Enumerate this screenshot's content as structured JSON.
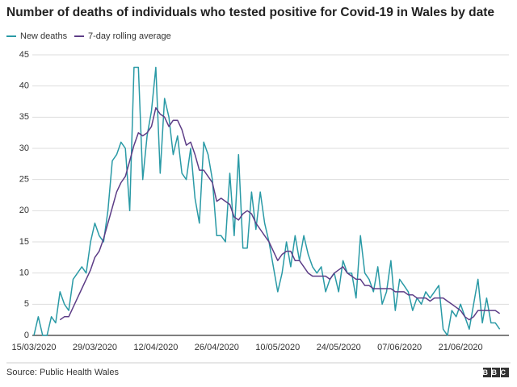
{
  "chart_data": {
    "type": "line",
    "title": "Number of deaths of individuals who tested positive for Covid-19 in Wales by date",
    "categories": [
      "15/03/2020",
      null,
      null,
      null,
      null,
      null,
      null,
      null,
      null,
      null,
      null,
      null,
      null,
      null,
      "29/03/2020",
      null,
      null,
      null,
      null,
      null,
      null,
      null,
      null,
      null,
      null,
      null,
      null,
      null,
      "12/04/2020",
      null,
      null,
      null,
      null,
      null,
      null,
      null,
      null,
      null,
      null,
      null,
      null,
      null,
      "26/04/2020",
      null,
      null,
      null,
      null,
      null,
      null,
      null,
      null,
      null,
      null,
      null,
      null,
      null,
      "10/05/2020",
      null,
      null,
      null,
      null,
      null,
      null,
      null,
      null,
      null,
      null,
      null,
      null,
      null,
      "24/05/2020",
      null,
      null,
      null,
      null,
      null,
      null,
      null,
      null,
      null,
      null,
      null,
      null,
      null,
      "07/06/2020",
      null,
      null,
      null,
      null,
      null,
      null,
      null,
      null,
      null,
      null,
      null,
      null,
      null,
      "21/06/2020",
      null,
      null,
      null,
      null,
      null,
      null,
      null,
      null,
      null
    ],
    "series": [
      {
        "name": "New deaths",
        "color": "#2a9aa6",
        "values": [
          0,
          3,
          0,
          0,
          3,
          2,
          7,
          5,
          4,
          9,
          10,
          11,
          10,
          15,
          18,
          16,
          15,
          20,
          28,
          29,
          31,
          30,
          20,
          43,
          43,
          25,
          32,
          36,
          43,
          26,
          38,
          35,
          29,
          32,
          26,
          25,
          30,
          22,
          18,
          31,
          29,
          25,
          16,
          16,
          15,
          26,
          16,
          29,
          14,
          14,
          23,
          17,
          23,
          18,
          15,
          11,
          7,
          10,
          15,
          11,
          16,
          12,
          16,
          13,
          11,
          10,
          11,
          7,
          9,
          10,
          7,
          12,
          10,
          10,
          6,
          16,
          10,
          9,
          7,
          11,
          5,
          7,
          12,
          4,
          9,
          8,
          7,
          4,
          6,
          5,
          7,
          6,
          7,
          8,
          1,
          0,
          4,
          3,
          5,
          3,
          1,
          5,
          9,
          2,
          6,
          2,
          2,
          1
        ]
      },
      {
        "name": "7-day rolling average",
        "color": "#5d3d87",
        "values": [
          null,
          null,
          null,
          null,
          null,
          null,
          2.5,
          3,
          3,
          4.5,
          6,
          7.5,
          9,
          10.5,
          12.5,
          13.5,
          15.5,
          18,
          20.5,
          23,
          24.5,
          25.5,
          28,
          30.5,
          32.5,
          32,
          32.5,
          33.5,
          36.5,
          35.5,
          35,
          33.5,
          34.5,
          34.5,
          33,
          30.5,
          31,
          29,
          26.5,
          26.5,
          25.5,
          24.5,
          21.5,
          22,
          21.5,
          21,
          19,
          18.5,
          19.5,
          20,
          19.5,
          18,
          17,
          16,
          15,
          13.5,
          12,
          13,
          13.5,
          13.5,
          12,
          12,
          11,
          10,
          9.5,
          9.5,
          9.5,
          9.5,
          9,
          10,
          10.5,
          11,
          10,
          9.5,
          9,
          9,
          8,
          8,
          7.5,
          7.5,
          7.5,
          7.5,
          7.5,
          7,
          7,
          7,
          6.5,
          6.5,
          6,
          6,
          6,
          5.5,
          6,
          6,
          6,
          5.5,
          5,
          4.5,
          4,
          3,
          2.5,
          3,
          4,
          4,
          4,
          4,
          4,
          3.5
        ]
      }
    ],
    "ylim": [
      0,
      45
    ],
    "yticks": [
      0,
      5,
      10,
      15,
      20,
      25,
      30,
      35,
      40,
      45
    ],
    "grid": true
  },
  "footer": {
    "source": "Source: Public Health Wales",
    "logo": "BBC"
  }
}
